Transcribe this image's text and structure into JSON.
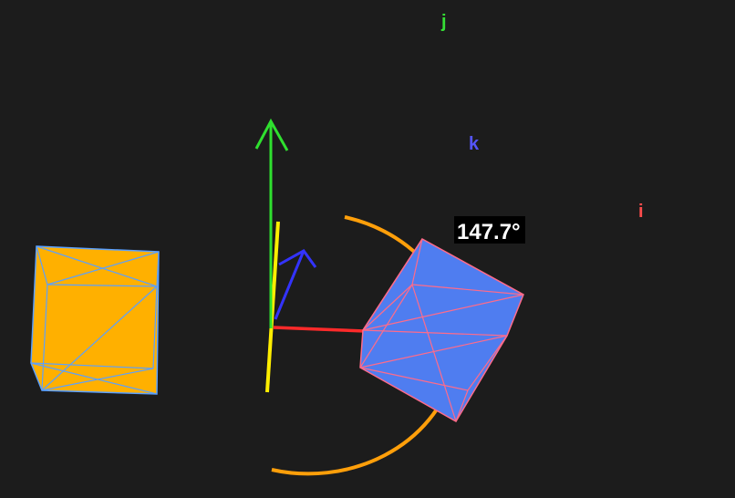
{
  "scene": {
    "axis_labels": {
      "i": "i",
      "j": "j",
      "k": "k"
    },
    "angle_readout": "147.7°",
    "colors": {
      "background": "#1c1c1c",
      "axis_i": "#ff4040",
      "axis_j": "#2fe02f",
      "axis_k": "#3333ff",
      "rotation_axis": "#ffee00",
      "rotation_arc": "#ff9f0a",
      "original_cube_fill": "#ffb000",
      "original_cube_edges": "#5aa0ff",
      "rotated_cube_fill": "#4f7df0",
      "rotated_cube_edges": "#ff6b8a",
      "label_i": "#ff4d4d",
      "label_j": "#35dd35",
      "label_k": "#5555ff",
      "angle_box": "#000000",
      "angle_text": "#ffffff"
    },
    "objects": {
      "original_cube": "original-cube",
      "rotated_cube": "rotated-cube",
      "rotation_axis": "rotation-axis",
      "rotation_arc": "rotation-arc"
    }
  }
}
